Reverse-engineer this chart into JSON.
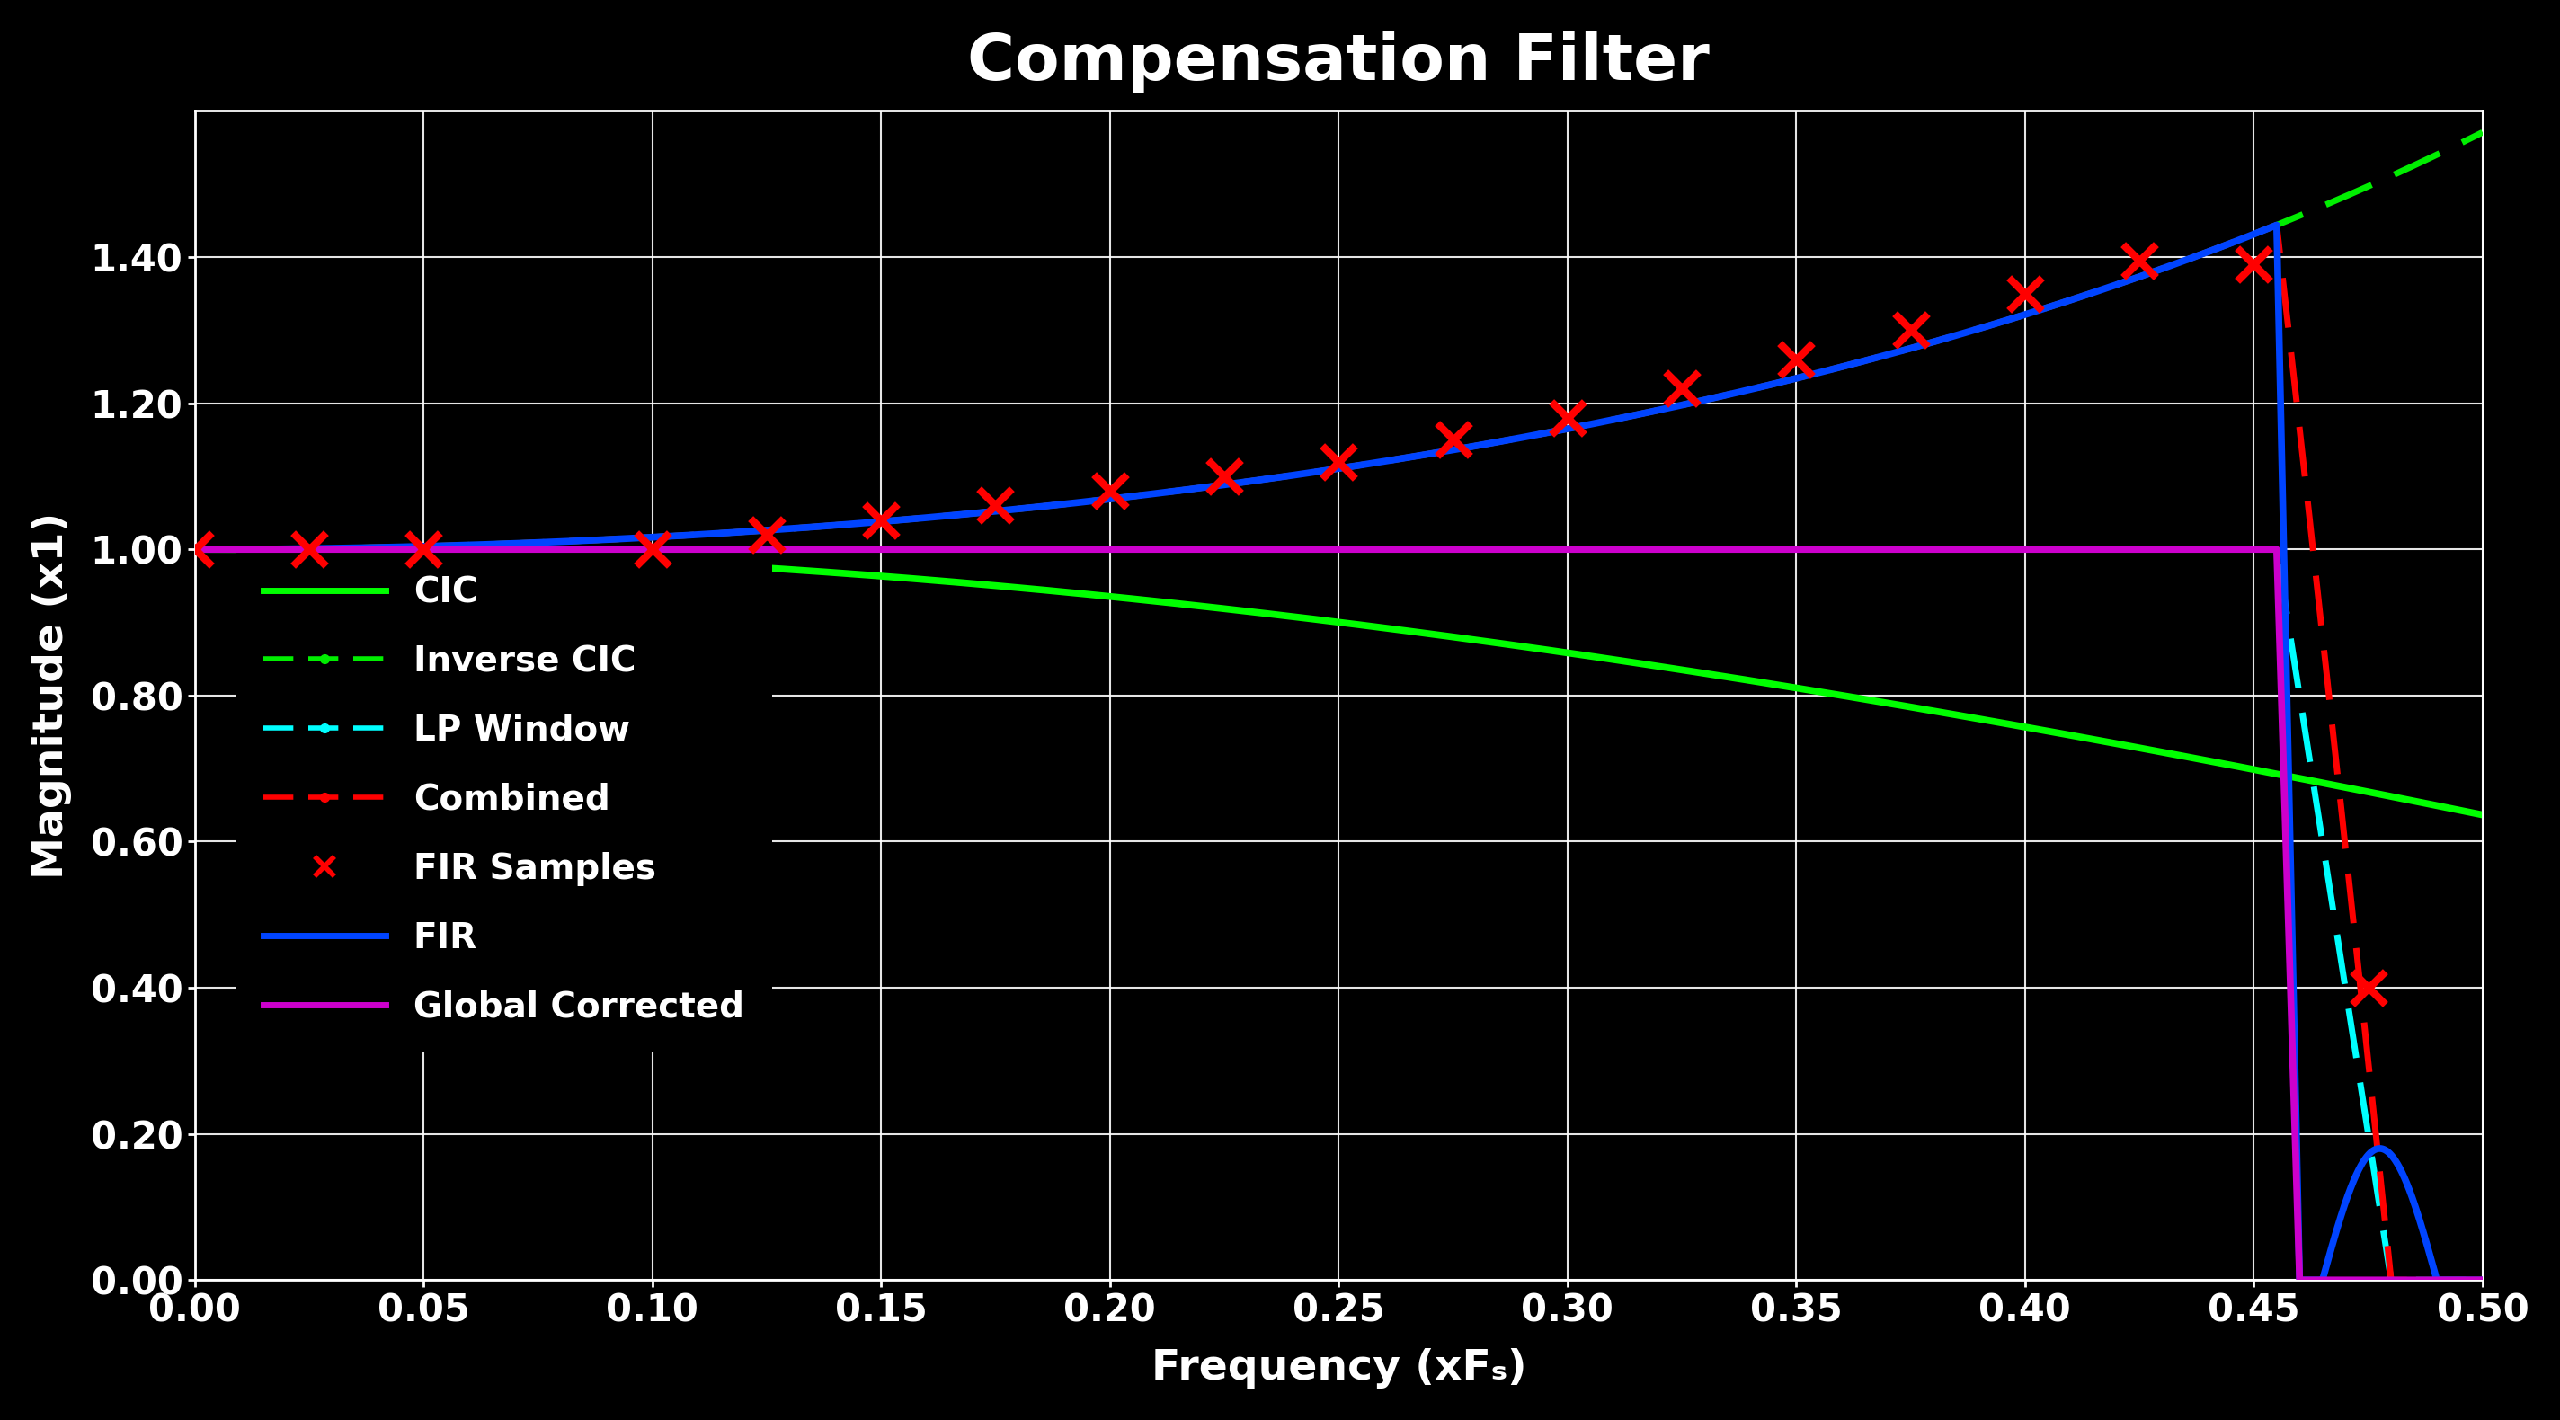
{
  "title": "Compensation Filter",
  "xlabel": "Frequency (xFₛ)",
  "ylabel": "Magnitude (x1)",
  "background_color": "#000000",
  "text_color": "#ffffff",
  "grid_color": "#ffffff",
  "xlim": [
    0.0,
    0.5
  ],
  "ylim": [
    0.0,
    1.6
  ],
  "yticks": [
    0.0,
    0.2,
    0.4,
    0.6,
    0.8,
    1.0,
    1.2,
    1.4
  ],
  "xticks": [
    0.0,
    0.05,
    0.1,
    0.15,
    0.2,
    0.25,
    0.3,
    0.35,
    0.4,
    0.45,
    0.5
  ],
  "title_fontsize": 52,
  "label_fontsize": 34,
  "tick_fontsize": 30,
  "legend_fontsize": 28,
  "cic_color": "#00ff00",
  "inverse_cic_color": "#00ee00",
  "lp_window_color": "#00ffff",
  "combined_color": "#ff0000",
  "fir_color": "#0044ff",
  "global_corrected_color": "#cc00cc",
  "fir_samples_color": "#ff0000",
  "N": 1,
  "R": 2,
  "passband_cutoff": 0.455,
  "fir_sample_freqs": [
    0.0,
    0.025,
    0.05,
    0.1,
    0.125,
    0.15,
    0.175,
    0.2,
    0.225,
    0.25,
    0.275,
    0.3,
    0.325,
    0.35,
    0.375,
    0.4,
    0.425,
    0.45,
    0.475
  ],
  "fir_sample_vals": [
    1.0,
    1.0,
    1.0,
    1.0,
    1.02,
    1.04,
    1.06,
    1.08,
    1.1,
    1.12,
    1.15,
    1.18,
    1.22,
    1.26,
    1.3,
    1.35,
    1.395,
    1.39,
    0.4
  ]
}
